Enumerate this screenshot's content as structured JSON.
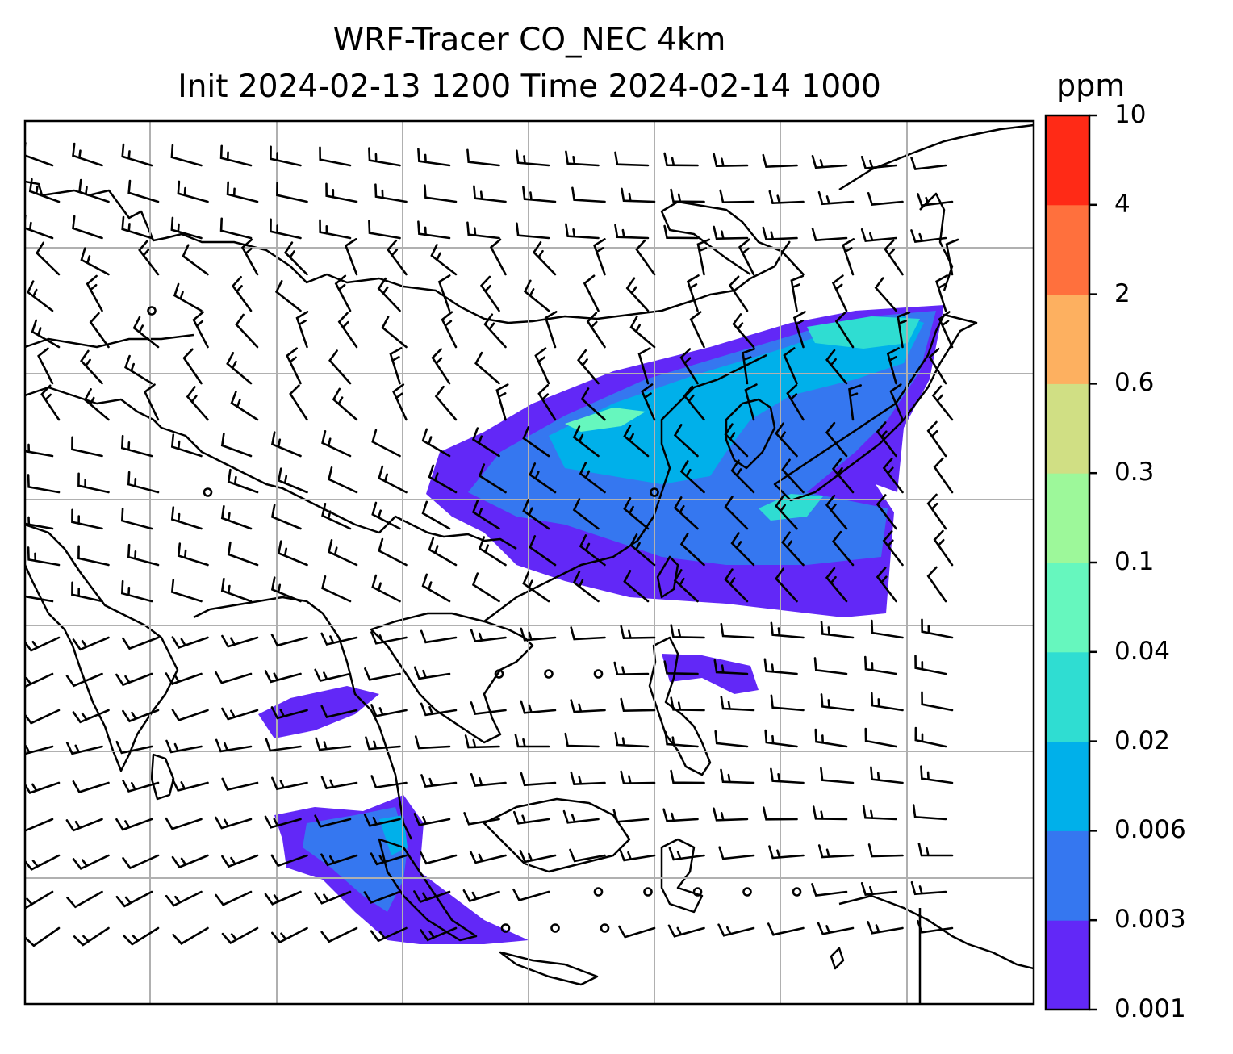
{
  "title": {
    "line1": "WRF-Tracer CO_NEC 4km",
    "line2": "Init 2024-02-13 1200 Time 2024-02-14 1000"
  },
  "colorbar": {
    "unit": "ppm",
    "tick_labels": [
      "0.001",
      "0.003",
      "0.006",
      "0.02",
      "0.04",
      "0.1",
      "0.3",
      "0.6",
      "2",
      "4",
      "10"
    ],
    "colors": [
      "#6228f7",
      "#3577f0",
      "#00b0ea",
      "#2fddd2",
      "#66f7be",
      "#9df89a",
      "#d0df84",
      "#fdb060",
      "#ff703d",
      "#ff2a16"
    ]
  },
  "map": {
    "gridlines": true,
    "coastlines": true,
    "wind_barbs": true,
    "field": "CO_NEC tracer concentration"
  }
}
